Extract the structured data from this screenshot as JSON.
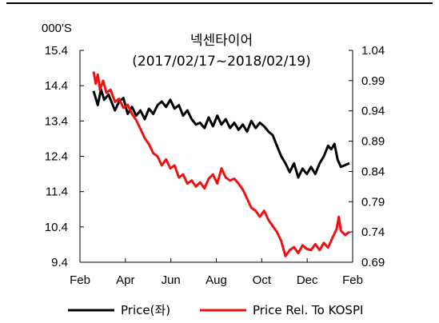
{
  "chart_data": {
    "type": "line",
    "title": "넥센타이어",
    "subtitle": "(2017/02/17~2018/02/19)",
    "y_unit_label": "000'S",
    "x_ticks": [
      "Feb",
      "Apr",
      "Jun",
      "Aug",
      "Oct",
      "Dec",
      "Feb"
    ],
    "left_axis": {
      "range": [
        9.4,
        15.4
      ],
      "ticks": [
        "15.4",
        "14.4",
        "13.4",
        "12.4",
        "11.4",
        "10.4",
        "9.4"
      ]
    },
    "right_axis": {
      "range": [
        0.69,
        1.04
      ],
      "ticks": [
        "1.04",
        "0.99",
        "0.94",
        "0.89",
        "0.84",
        "0.79",
        "0.74",
        "0.69"
      ]
    },
    "legend_position": "bottom",
    "grid": false,
    "series": [
      {
        "name": "Price(좌)",
        "axis": "left",
        "color": "#000000",
        "points": [
          [
            0.0,
            14.25
          ],
          [
            0.2,
            13.85
          ],
          [
            0.35,
            14.3
          ],
          [
            0.5,
            14.0
          ],
          [
            0.7,
            14.15
          ],
          [
            1.0,
            13.7
          ],
          [
            1.2,
            13.95
          ],
          [
            1.4,
            14.05
          ],
          [
            1.6,
            13.6
          ],
          [
            1.8,
            13.8
          ],
          [
            2.0,
            13.55
          ],
          [
            2.2,
            13.7
          ],
          [
            2.4,
            13.45
          ],
          [
            2.6,
            13.75
          ],
          [
            2.8,
            13.6
          ],
          [
            3.0,
            13.85
          ],
          [
            3.2,
            13.95
          ],
          [
            3.4,
            13.8
          ],
          [
            3.6,
            14.0
          ],
          [
            3.8,
            13.75
          ],
          [
            4.0,
            13.85
          ],
          [
            4.2,
            13.55
          ],
          [
            4.4,
            13.7
          ],
          [
            4.6,
            13.45
          ],
          [
            4.8,
            13.3
          ],
          [
            5.0,
            13.35
          ],
          [
            5.2,
            13.2
          ],
          [
            5.4,
            13.5
          ],
          [
            5.6,
            13.25
          ],
          [
            5.8,
            13.55
          ],
          [
            6.0,
            13.3
          ],
          [
            6.2,
            13.45
          ],
          [
            6.4,
            13.2
          ],
          [
            6.6,
            13.35
          ],
          [
            6.8,
            13.15
          ],
          [
            7.0,
            13.3
          ],
          [
            7.2,
            13.1
          ],
          [
            7.4,
            13.4
          ],
          [
            7.6,
            13.2
          ],
          [
            7.8,
            13.35
          ],
          [
            8.0,
            13.25
          ],
          [
            8.2,
            13.1
          ],
          [
            8.4,
            13.0
          ],
          [
            8.6,
            12.7
          ],
          [
            8.8,
            12.4
          ],
          [
            9.0,
            12.2
          ],
          [
            9.2,
            11.95
          ],
          [
            9.4,
            12.2
          ],
          [
            9.6,
            11.8
          ],
          [
            9.8,
            12.05
          ],
          [
            10.0,
            11.9
          ],
          [
            10.2,
            12.1
          ],
          [
            10.4,
            11.9
          ],
          [
            10.6,
            12.2
          ],
          [
            10.8,
            12.4
          ],
          [
            11.0,
            12.7
          ],
          [
            11.15,
            12.6
          ],
          [
            11.3,
            12.75
          ],
          [
            11.45,
            12.3
          ],
          [
            11.6,
            12.1
          ],
          [
            11.8,
            12.15
          ],
          [
            12.0,
            12.2
          ]
        ]
      },
      {
        "name": "Price Rel. To KOSPI",
        "axis": "right",
        "color": "#ee1111",
        "points": [
          [
            0.0,
            1.005
          ],
          [
            0.1,
            0.985
          ],
          [
            0.2,
            1.0
          ],
          [
            0.3,
            0.975
          ],
          [
            0.45,
            0.99
          ],
          [
            0.6,
            0.97
          ],
          [
            0.8,
            0.975
          ],
          [
            1.0,
            0.955
          ],
          [
            1.2,
            0.96
          ],
          [
            1.4,
            0.945
          ],
          [
            1.6,
            0.95
          ],
          [
            1.8,
            0.935
          ],
          [
            2.0,
            0.925
          ],
          [
            2.2,
            0.91
          ],
          [
            2.4,
            0.895
          ],
          [
            2.6,
            0.885
          ],
          [
            2.8,
            0.87
          ],
          [
            3.0,
            0.865
          ],
          [
            3.2,
            0.85
          ],
          [
            3.4,
            0.86
          ],
          [
            3.6,
            0.845
          ],
          [
            3.8,
            0.85
          ],
          [
            4.0,
            0.83
          ],
          [
            4.2,
            0.835
          ],
          [
            4.4,
            0.82
          ],
          [
            4.6,
            0.825
          ],
          [
            4.8,
            0.815
          ],
          [
            5.0,
            0.822
          ],
          [
            5.2,
            0.812
          ],
          [
            5.4,
            0.828
          ],
          [
            5.6,
            0.835
          ],
          [
            5.8,
            0.82
          ],
          [
            6.0,
            0.845
          ],
          [
            6.2,
            0.83
          ],
          [
            6.4,
            0.825
          ],
          [
            6.6,
            0.828
          ],
          [
            6.8,
            0.82
          ],
          [
            7.0,
            0.81
          ],
          [
            7.2,
            0.795
          ],
          [
            7.4,
            0.78
          ],
          [
            7.6,
            0.775
          ],
          [
            7.8,
            0.765
          ],
          [
            8.0,
            0.775
          ],
          [
            8.2,
            0.76
          ],
          [
            8.4,
            0.75
          ],
          [
            8.6,
            0.74
          ],
          [
            8.8,
            0.725
          ],
          [
            9.0,
            0.7
          ],
          [
            9.2,
            0.71
          ],
          [
            9.4,
            0.715
          ],
          [
            9.6,
            0.705
          ],
          [
            9.8,
            0.718
          ],
          [
            10.0,
            0.712
          ],
          [
            10.2,
            0.71
          ],
          [
            10.4,
            0.72
          ],
          [
            10.6,
            0.71
          ],
          [
            10.8,
            0.722
          ],
          [
            11.0,
            0.714
          ],
          [
            11.2,
            0.73
          ],
          [
            11.4,
            0.745
          ],
          [
            11.5,
            0.765
          ],
          [
            11.6,
            0.742
          ],
          [
            11.8,
            0.735
          ],
          [
            12.0,
            0.74
          ]
        ]
      }
    ]
  }
}
